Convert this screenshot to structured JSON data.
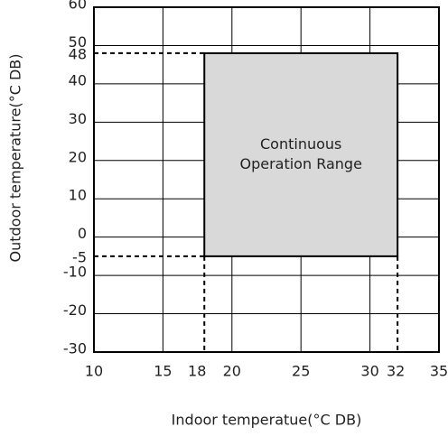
{
  "chart_data": {
    "type": "range",
    "xlabel": "Indoor temperatue(°C DB)",
    "ylabel": "Outdoor temperature(°C DB)",
    "xlim": [
      10,
      35
    ],
    "xticks": [
      10,
      15,
      20,
      25,
      30,
      35
    ],
    "ylim": [
      -30,
      60
    ],
    "yticks": [
      -30,
      -20,
      -10,
      0,
      10,
      20,
      30,
      40,
      50,
      60
    ],
    "grid": true,
    "region": {
      "x": [
        18,
        32
      ],
      "y": [
        -5,
        48
      ],
      "color": "#d9d9d9",
      "label": [
        "Continuous",
        "Operation Range"
      ]
    }
  }
}
